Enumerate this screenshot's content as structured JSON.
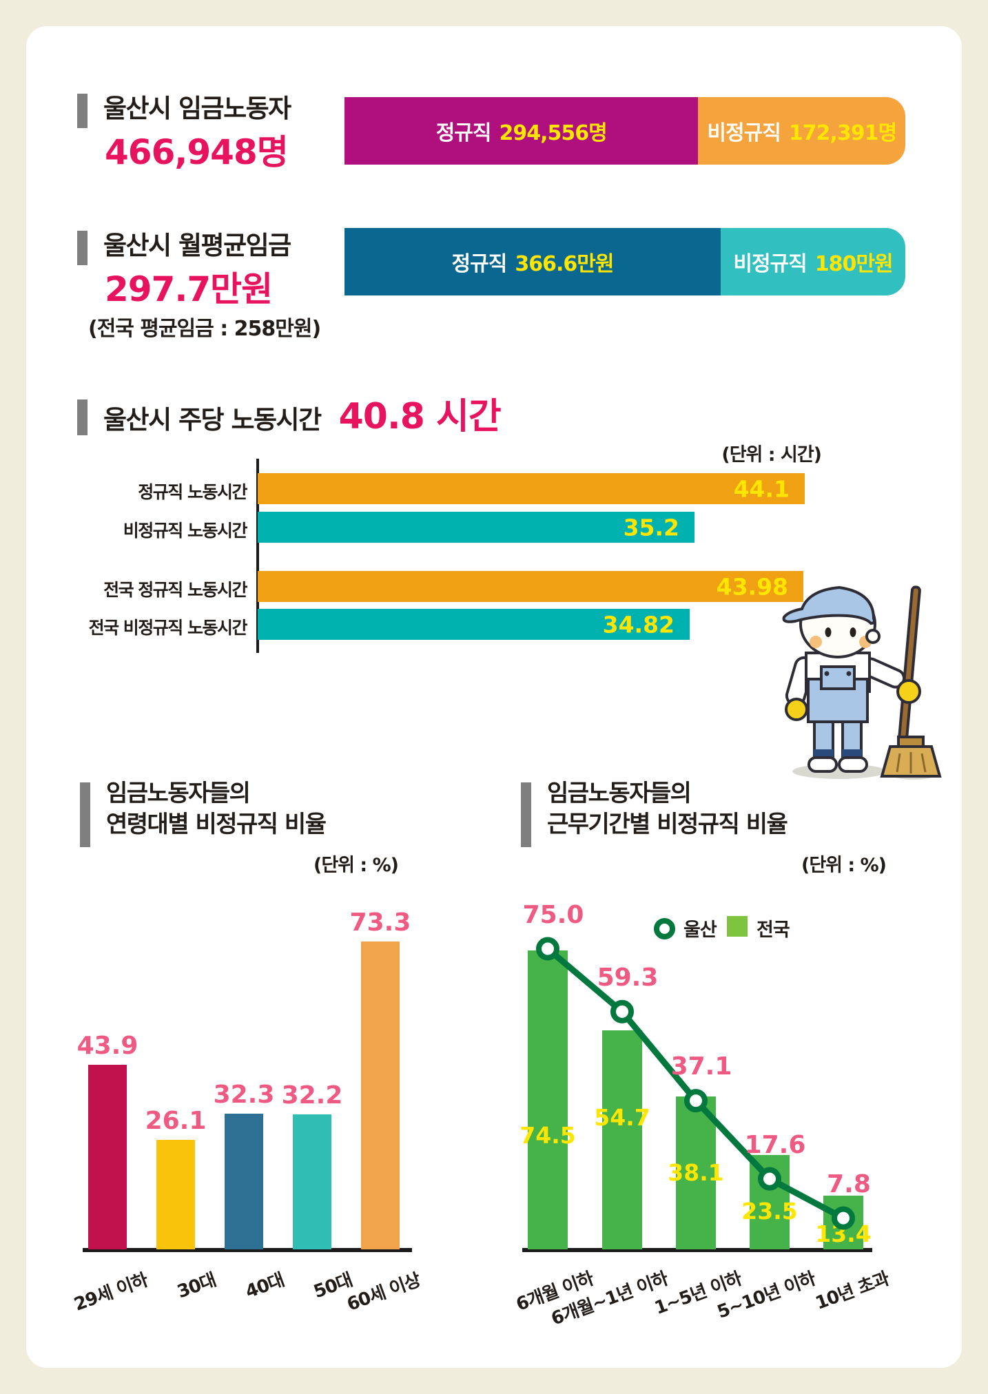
{
  "colors": {
    "background": "#f0eddc",
    "card": "#ffffff",
    "accent_pink": "#e8135e",
    "value_label_pink": "#ee5a82",
    "value_yellow": "#ffe600",
    "title_marker_gray": "#7f7f7f",
    "axis_black": "#1b1b1b"
  },
  "worker_section": {
    "title": "울산시 임금노동자",
    "total": "466,948명",
    "segments": [
      {
        "label": "정규직",
        "value": "294,556명",
        "color": "#b0107e"
      },
      {
        "label": "비정규직",
        "value": "172,391명",
        "color": "#f5a33c"
      }
    ]
  },
  "wage_section": {
    "title": "울산시 월평균임금",
    "total": "297.7만원",
    "note": "(전국 평균임금 : 258만원)",
    "segments": [
      {
        "label": "정규직",
        "value": "366.6만원",
        "color": "#0a678f"
      },
      {
        "label": "비정규직",
        "value": "180만원",
        "color": "#31bfbf"
      }
    ]
  },
  "hours_section": {
    "title": "울산시 주당 노동시간",
    "highlight": "40.8 시간",
    "unit_note": "(단위 : 시간)",
    "bar_colors": [
      "#f0a013",
      "#00b2af",
      "#f0a013",
      "#00b2af"
    ]
  },
  "age_section": {
    "title_line1": "임금노동자들의",
    "title_line2": "연령대별 비정규직 비율",
    "unit_note": "(단위 : %)",
    "bar_colors": [
      "#c2124e",
      "#f9c30b",
      "#2e7093",
      "#2fbdb4",
      "#f2a44c"
    ]
  },
  "tenure_section": {
    "title_line1": "임금노동자들의",
    "title_line2": "근무기간별 비정규직 비율",
    "unit_note": "(단위 : %)",
    "legend": [
      {
        "label": "울산",
        "type": "line"
      },
      {
        "label": "전국",
        "type": "bar"
      }
    ],
    "bar_color": "#46b24a",
    "legend_bar_color": "#7fc43e",
    "line_color": "#00783e"
  },
  "mascot": {
    "description": "cleaner kid with cap and broom"
  },
  "chart_data": [
    {
      "type": "bar",
      "subtype": "horizontal-stacked",
      "title": "울산시 임금노동자",
      "total_label": "466,948명",
      "unit": "명",
      "series": [
        {
          "name": "정규직",
          "values": [
            294556
          ]
        },
        {
          "name": "비정규직",
          "values": [
            172391
          ]
        }
      ]
    },
    {
      "type": "bar",
      "subtype": "horizontal-stacked",
      "title": "울산시 월평균임금",
      "total_label": "297.7만원",
      "annotation": "전국 평균임금 : 258만원",
      "unit": "만원",
      "series": [
        {
          "name": "정규직",
          "values": [
            366.6
          ]
        },
        {
          "name": "비정규직",
          "values": [
            180
          ]
        }
      ]
    },
    {
      "type": "bar",
      "subtype": "horizontal",
      "title": "울산시 주당 노동시간 40.8 시간",
      "unit": "시간",
      "categories": [
        "정규직 노동시간",
        "비정규직 노동시간",
        "전국 정규직 노동시간",
        "전국 비정규직 노동시간"
      ],
      "values": [
        44.1,
        35.2,
        43.98,
        34.82
      ],
      "xlim": [
        0,
        45
      ],
      "grid": false
    },
    {
      "type": "bar",
      "title": "임금노동자들의 연령대별 비정규직 비율",
      "unit": "%",
      "categories": [
        "29세 이하",
        "30대",
        "40대",
        "50대",
        "60세 이상"
      ],
      "values": [
        43.9,
        26.1,
        32.3,
        32.2,
        73.3
      ],
      "ylim": [
        0,
        80
      ],
      "grid": false
    },
    {
      "type": "bar+line",
      "title": "임금노동자들의 근무기간별 비정규직 비율",
      "unit": "%",
      "categories": [
        "6개월 이하",
        "6개월~1년 이하",
        "1~5년 이하",
        "5~10년 이하",
        "10년 초과"
      ],
      "series": [
        {
          "name": "울산",
          "type": "line",
          "values": [
            75.0,
            59.3,
            37.1,
            17.6,
            7.8
          ]
        },
        {
          "name": "전국",
          "type": "bar",
          "values": [
            74.5,
            54.7,
            38.1,
            23.5,
            13.4
          ]
        }
      ],
      "ylim": [
        0,
        80
      ],
      "legend_position": "top",
      "grid": false
    }
  ]
}
